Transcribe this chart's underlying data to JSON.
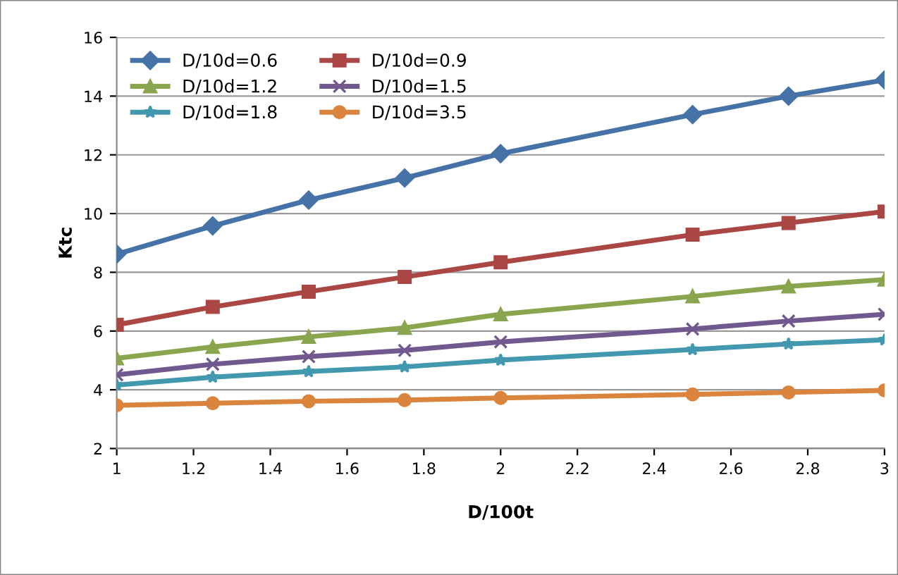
{
  "chart_data": {
    "type": "line",
    "xlabel": "D/100t",
    "ylabel": "Ktc",
    "x": [
      1,
      1.25,
      1.5,
      1.75,
      2,
      2.5,
      2.75,
      3
    ],
    "series": [
      {
        "name": "D/10d=0.6",
        "color": "#4572a7",
        "marker": "diamond",
        "values": [
          8.62,
          9.58,
          10.46,
          11.21,
          12.04,
          13.37,
          14.0,
          14.55
        ]
      },
      {
        "name": "D/10d=0.9",
        "color": "#aa4643",
        "marker": "square",
        "values": [
          6.21,
          6.82,
          7.34,
          7.84,
          8.34,
          9.28,
          9.68,
          10.07
        ]
      },
      {
        "name": "D/10d=1.2",
        "color": "#89a54e",
        "marker": "triangle",
        "values": [
          5.07,
          5.46,
          5.8,
          6.11,
          6.57,
          7.18,
          7.52,
          7.75
        ]
      },
      {
        "name": "D/10d=1.5",
        "color": "#71588f",
        "marker": "cross",
        "values": [
          4.51,
          4.87,
          5.13,
          5.34,
          5.63,
          6.07,
          6.34,
          6.57
        ]
      },
      {
        "name": "D/10d=1.8",
        "color": "#4198af",
        "marker": "star",
        "values": [
          4.16,
          4.43,
          4.62,
          4.78,
          5.01,
          5.37,
          5.56,
          5.7
        ]
      },
      {
        "name": "D/10d=3.5",
        "color": "#db843d",
        "marker": "circle",
        "values": [
          3.47,
          3.54,
          3.61,
          3.65,
          3.72,
          3.84,
          3.91,
          3.98
        ]
      }
    ],
    "xlim": [
      1,
      3
    ],
    "xticks": [
      1,
      1.2,
      1.4,
      1.6,
      1.8,
      2,
      2.2,
      2.4,
      2.6,
      2.8,
      3
    ],
    "ylim": [
      2,
      16
    ],
    "yticks": [
      2,
      4,
      6,
      8,
      10,
      12,
      14,
      16
    ],
    "grid": "y",
    "legend": "top left",
    "line_style": "solid"
  }
}
